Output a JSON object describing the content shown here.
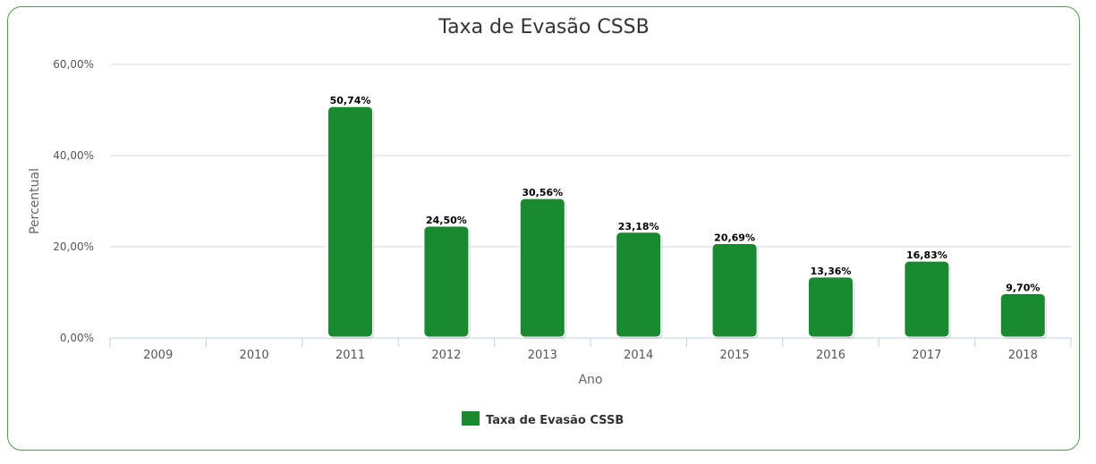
{
  "chart_data": {
    "type": "bar",
    "title": "Taxa de Evasão CSSB",
    "xlabel": "Ano",
    "ylabel": "Percentual",
    "categories": [
      "2009",
      "2010",
      "2011",
      "2012",
      "2013",
      "2014",
      "2015",
      "2016",
      "2017",
      "2018"
    ],
    "series": [
      {
        "name": "Taxa de Evasão CSSB",
        "values": [
          null,
          null,
          50.74,
          24.5,
          30.56,
          23.18,
          20.69,
          13.36,
          16.83,
          9.7
        ],
        "labels": [
          "",
          "",
          "50,74%",
          "24,50%",
          "30,56%",
          "23,18%",
          "20,69%",
          "13,36%",
          "16,83%",
          "9,70%"
        ],
        "color": "#1a8a30"
      }
    ],
    "ylim": [
      0,
      60
    ],
    "yticks": [
      0,
      20,
      40,
      60
    ],
    "ytick_labels": [
      "0,00%",
      "20,00%",
      "40,00%",
      "60,00%"
    ],
    "grid": true,
    "legend": "bottom-center"
  }
}
